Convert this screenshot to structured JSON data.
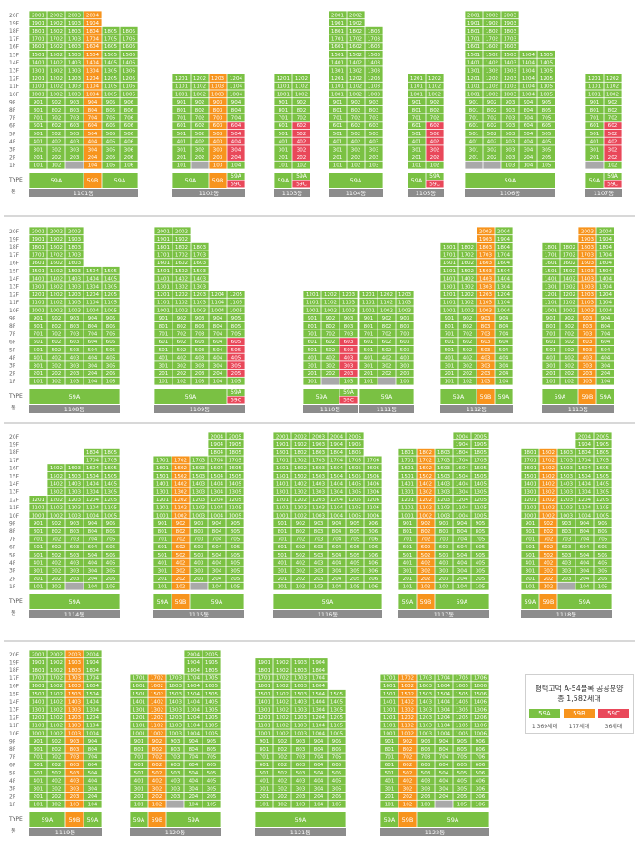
{
  "colors": {
    "a59": "#7ac143",
    "b59": "#f7941d",
    "c59": "#e9485a",
    "shared": "#a9a9a9",
    "label_bar": "#8c8c8c",
    "divider": "#b0b0b0"
  },
  "row_labels": {
    "type": "TYPE",
    "dong": "동"
  },
  "floor_labels": [
    "20F",
    "19F",
    "18F",
    "17F",
    "16F",
    "15F",
    "14F",
    "13F",
    "12F",
    "11F",
    "10F",
    "9F",
    "8F",
    "7F",
    "6F",
    "5F",
    "4F",
    "3F",
    "2F",
    "1F"
  ],
  "legend": {
    "title_1": "평택고덕 A-54블록 공공분양",
    "title_2": "총 1,582세대",
    "items": [
      {
        "label": "59A",
        "count": "1,369세대",
        "color": "#7ac143"
      },
      {
        "label": "59B",
        "count": "177세대",
        "color": "#f7941d"
      },
      {
        "label": "59C",
        "count": "36세대",
        "color": "#e9485a"
      }
    ]
  },
  "buildings": [
    {
      "name": "1101동",
      "row": 0,
      "lines": 6,
      "heights": [
        20,
        20,
        20,
        20,
        18,
        18
      ],
      "b_lines": [
        4
      ],
      "c_units": [],
      "shared_1f": [
        3
      ],
      "types": [
        {
          "label": "59A",
          "span": 3,
          "kind": "a"
        },
        {
          "label": "59B",
          "span": 1,
          "kind": "b"
        },
        {
          "label": "59A",
          "span": 2,
          "kind": "a"
        }
      ]
    },
    {
      "name": "1102동",
      "row": 0,
      "lines": 4,
      "heights": [
        12,
        12,
        12,
        12
      ],
      "b_lines": [
        3
      ],
      "c_units": [
        {
          "line": 4,
          "floors": [
            2,
            3,
            4,
            5,
            6
          ]
        }
      ],
      "shared_1f": [
        2
      ],
      "types": [
        {
          "label": "59A",
          "span": 2,
          "kind": "a"
        },
        {
          "label": "59B",
          "span": 1,
          "kind": "b"
        },
        {
          "label": "59A",
          "sub": "59C",
          "span": 1,
          "kind": "ac"
        }
      ]
    },
    {
      "name": "1103동",
      "row": 0,
      "lines": 2,
      "heights": [
        12,
        12
      ],
      "b_lines": [],
      "c_units": [
        {
          "line": 2,
          "floors": [
            2,
            3,
            4,
            5,
            6
          ]
        }
      ],
      "shared_1f": [],
      "types": [
        {
          "label": "59A",
          "span": 1,
          "kind": "a"
        },
        {
          "label": "59A",
          "sub": "59C",
          "span": 1,
          "kind": "ac"
        }
      ]
    },
    {
      "name": "1104동",
      "row": 0,
      "lines": 3,
      "heights": [
        20,
        20,
        18
      ],
      "b_lines": [],
      "c_units": [],
      "shared_1f": [],
      "types": [
        {
          "label": "59A",
          "span": 3,
          "kind": "a"
        }
      ]
    },
    {
      "name": "1105동",
      "row": 0,
      "lines": 2,
      "heights": [
        12,
        12
      ],
      "b_lines": [],
      "c_units": [
        {
          "line": 2,
          "floors": [
            2,
            3,
            4,
            5,
            6
          ]
        }
      ],
      "shared_1f": [],
      "types": [
        {
          "label": "59A",
          "span": 1,
          "kind": "a"
        },
        {
          "label": "59A",
          "sub": "59C",
          "span": 1,
          "kind": "ac"
        }
      ]
    },
    {
      "name": "1106동",
      "row": 0,
      "lines": 5,
      "heights": [
        20,
        20,
        20,
        15,
        15
      ],
      "b_lines": [],
      "c_units": [],
      "shared_1f": [
        1,
        2
      ],
      "types": [
        {
          "label": "59A",
          "span": 5,
          "kind": "a"
        }
      ]
    },
    {
      "name": "1107동",
      "row": 0,
      "lines": 2,
      "heights": [
        12,
        12
      ],
      "b_lines": [],
      "c_units": [
        {
          "line": 2,
          "floors": [
            2,
            3,
            4,
            5,
            6
          ]
        }
      ],
      "shared_1f": [
        1
      ],
      "types": [
        {
          "label": "59A",
          "span": 1,
          "kind": "a"
        },
        {
          "label": "59A",
          "sub": "59C",
          "span": 1,
          "kind": "ac"
        }
      ]
    },
    {
      "name": "1108동",
      "row": 1,
      "lines": 5,
      "heights": [
        20,
        20,
        20,
        15,
        15
      ],
      "b_lines": [],
      "c_units": [],
      "shared_1f": [],
      "types": [
        {
          "label": "59A",
          "span": 5,
          "kind": "a"
        }
      ]
    },
    {
      "name": "1109동",
      "row": 1,
      "lines": 5,
      "heights": [
        20,
        20,
        18,
        12,
        12
      ],
      "b_lines": [],
      "c_units": [
        {
          "line": 5,
          "floors": [
            2,
            3,
            4,
            5,
            6
          ]
        }
      ],
      "shared_1f": [],
      "types": [
        {
          "label": "59A",
          "span": 4,
          "kind": "a"
        },
        {
          "label": "59A",
          "sub": "59C",
          "span": 1,
          "kind": "ac"
        }
      ]
    },
    {
      "name": "1110동",
      "row": 1,
      "lines": 3,
      "heights": [
        12,
        12,
        12
      ],
      "b_lines": [],
      "c_units": [
        {
          "line": 3,
          "floors": [
            2,
            3,
            4,
            5,
            6
          ]
        }
      ],
      "shared_1f": [
        2
      ],
      "types": [
        {
          "label": "59A",
          "span": 2,
          "kind": "a"
        },
        {
          "label": "59A",
          "sub": "59C",
          "span": 1,
          "kind": "ac"
        }
      ]
    },
    {
      "name": "1111동",
      "row": 1,
      "lines": 3,
      "heights": [
        12,
        12,
        12
      ],
      "b_lines": [],
      "c_units": [],
      "shared_1f": [
        2
      ],
      "types": [
        {
          "label": "59A",
          "span": 3,
          "kind": "a"
        }
      ]
    },
    {
      "name": "1112동",
      "row": 1,
      "lines": 4,
      "heights": [
        18,
        18,
        20,
        20
      ],
      "b_lines": [
        3
      ],
      "c_units": [],
      "shared_1f": [],
      "types": [
        {
          "label": "59A",
          "span": 2,
          "kind": "a"
        },
        {
          "label": "59B",
          "span": 1,
          "kind": "b"
        },
        {
          "label": "59A",
          "span": 1,
          "kind": "a"
        }
      ]
    },
    {
      "name": "1113동",
      "row": 1,
      "lines": 4,
      "heights": [
        18,
        18,
        20,
        20
      ],
      "b_lines": [
        3
      ],
      "c_units": [],
      "shared_1f": [],
      "types": [
        {
          "label": "59A",
          "span": 2,
          "kind": "a"
        },
        {
          "label": "59B",
          "span": 1,
          "kind": "b"
        },
        {
          "label": "59A",
          "span": 1,
          "kind": "a"
        }
      ]
    },
    {
      "name": "1114동",
      "row": 2,
      "lines": 5,
      "heights": [
        12,
        16,
        16,
        18,
        18
      ],
      "b_lines": [],
      "c_units": [],
      "shared_1f": [
        3
      ],
      "types": [
        {
          "label": "59A",
          "span": 5,
          "kind": "a"
        }
      ]
    },
    {
      "name": "1115동",
      "row": 2,
      "lines": 5,
      "heights": [
        17,
        17,
        17,
        20,
        20
      ],
      "b_lines": [
        2
      ],
      "c_units": [],
      "shared_1f": [
        3
      ],
      "types": [
        {
          "label": "59A",
          "span": 1,
          "kind": "a"
        },
        {
          "label": "59B",
          "span": 1,
          "kind": "b"
        },
        {
          "label": "59A",
          "span": 3,
          "kind": "a"
        }
      ]
    },
    {
      "name": "1116동",
      "row": 2,
      "lines": 6,
      "heights": [
        20,
        20,
        20,
        20,
        20,
        17
      ],
      "b_lines": [],
      "c_units": [],
      "shared_1f": [],
      "types": [
        {
          "label": "59A",
          "span": 6,
          "kind": "a"
        }
      ]
    },
    {
      "name": "1117동",
      "row": 2,
      "lines": 5,
      "heights": [
        18,
        18,
        18,
        20,
        20
      ],
      "b_lines": [
        2
      ],
      "c_units": [],
      "shared_1f": [],
      "types": [
        {
          "label": "59A",
          "span": 1,
          "kind": "a"
        },
        {
          "label": "59B",
          "span": 1,
          "kind": "b"
        },
        {
          "label": "59A",
          "span": 3,
          "kind": "a"
        }
      ]
    },
    {
      "name": "1118동",
      "row": 2,
      "lines": 5,
      "heights": [
        18,
        18,
        18,
        20,
        20
      ],
      "b_lines": [
        2
      ],
      "c_units": [],
      "shared_1f": [
        3
      ],
      "types": [
        {
          "label": "59A",
          "span": 1,
          "kind": "a"
        },
        {
          "label": "59B",
          "span": 1,
          "kind": "b"
        },
        {
          "label": "59A",
          "span": 3,
          "kind": "a"
        }
      ]
    },
    {
      "name": "1119동",
      "row": 3,
      "lines": 4,
      "heights": [
        20,
        20,
        20,
        20
      ],
      "b_lines": [
        3
      ],
      "c_units": [],
      "shared_1f": [],
      "types": [
        {
          "label": "59A",
          "span": 2,
          "kind": "a"
        },
        {
          "label": "59B",
          "span": 1,
          "kind": "b"
        },
        {
          "label": "59A",
          "span": 1,
          "kind": "a"
        }
      ]
    },
    {
      "name": "1120동",
      "row": 3,
      "lines": 5,
      "heights": [
        17,
        17,
        17,
        20,
        20
      ],
      "b_lines": [
        2
      ],
      "c_units": [],
      "shared_1f": [
        3
      ],
      "types": [
        {
          "label": "59A",
          "span": 1,
          "kind": "a"
        },
        {
          "label": "59B",
          "span": 1,
          "kind": "b"
        },
        {
          "label": "59A",
          "span": 3,
          "kind": "a"
        }
      ]
    },
    {
      "name": "1121동",
      "row": 3,
      "lines": 5,
      "heights": [
        19,
        19,
        19,
        19,
        15
      ],
      "b_lines": [],
      "c_units": [],
      "shared_1f": [],
      "types": [
        {
          "label": "59A",
          "span": 5,
          "kind": "a"
        }
      ]
    },
    {
      "name": "1122동",
      "row": 3,
      "lines": 6,
      "heights": [
        17,
        17,
        17,
        17,
        17,
        17
      ],
      "b_lines": [
        2
      ],
      "c_units": [],
      "shared_1f": [
        4
      ],
      "types": [
        {
          "label": "59A",
          "span": 1,
          "kind": "a"
        },
        {
          "label": "59B",
          "span": 1,
          "kind": "b"
        },
        {
          "label": "59A",
          "span": 4,
          "kind": "a"
        }
      ]
    }
  ]
}
